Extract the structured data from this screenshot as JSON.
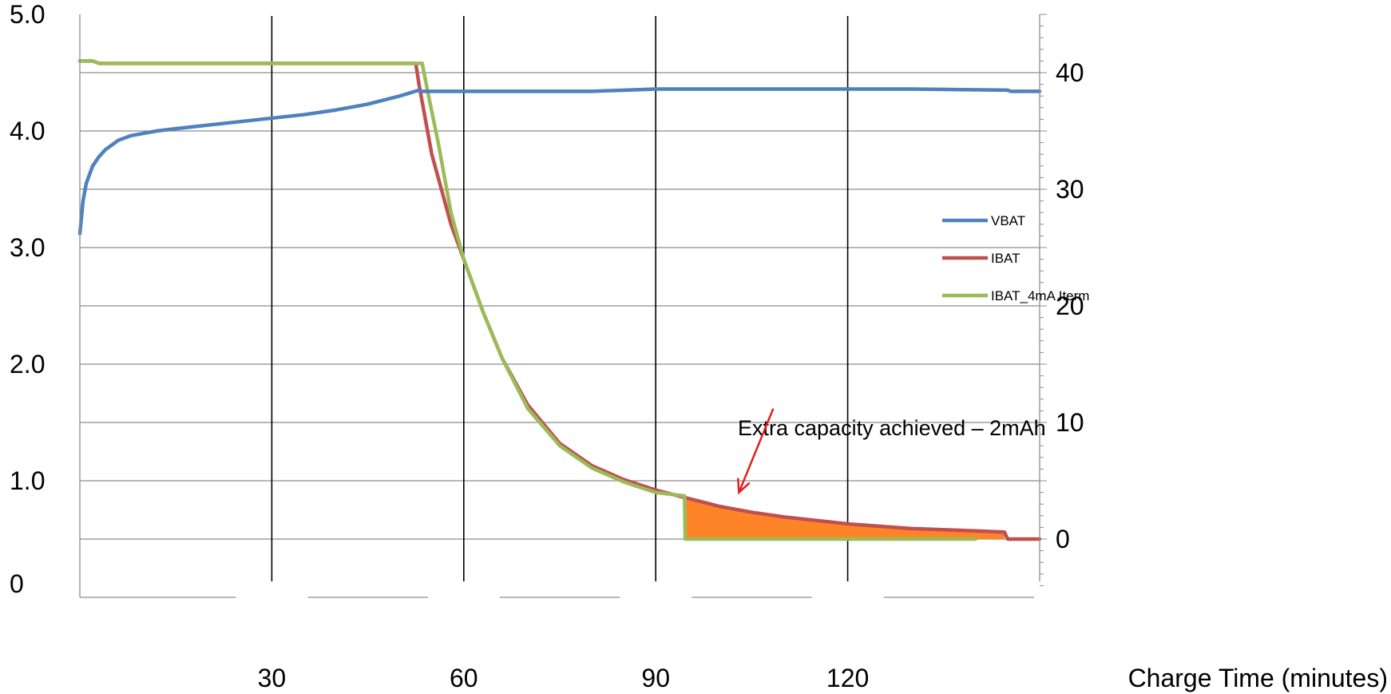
{
  "chart_data": {
    "type": "line",
    "xlabel": "Charge Time (minutes)",
    "xlim": [
      0,
      150
    ],
    "x_ticks": [
      30,
      60,
      90,
      120
    ],
    "x_tick_labels": [
      "30",
      "60",
      "90",
      "120"
    ],
    "left_axis": {
      "ylim": [
        0,
        5.0
      ],
      "tick_values": [
        0,
        1.0,
        2.0,
        3.0,
        4.0,
        5.0
      ],
      "tick_labels": [
        "0",
        "1.0",
        "2.0",
        "3.0",
        "4.0",
        "5.0"
      ]
    },
    "right_axis": {
      "ylim": [
        -5,
        45
      ],
      "tick_values": [
        0,
        10,
        20,
        30,
        40
      ],
      "tick_labels": [
        "0",
        "10",
        "20",
        "30",
        "40"
      ]
    },
    "grid": {
      "horizontal": true,
      "horizontal_left_values": [
        0.5,
        1.0,
        1.5,
        2.0,
        2.5,
        3.0,
        3.5,
        4.0,
        4.5
      ],
      "vertical_values": [
        30,
        60,
        90,
        120
      ]
    },
    "legend": {
      "position": "right",
      "entries": [
        "VBAT",
        "IBAT",
        "IBAT_4mA Iterm"
      ]
    },
    "series": [
      {
        "name": "VBAT",
        "axis": "left",
        "color": "#4f81bd",
        "x": [
          0,
          0.5,
          1,
          2,
          3,
          4,
          5,
          6,
          8,
          10,
          12,
          15,
          20,
          25,
          30,
          35,
          40,
          45,
          50,
          53,
          53.5,
          60,
          70,
          80,
          90,
          100,
          110,
          120,
          130,
          145,
          145.5,
          150
        ],
        "y": [
          3.12,
          3.4,
          3.55,
          3.7,
          3.78,
          3.84,
          3.88,
          3.92,
          3.96,
          3.98,
          4.0,
          4.02,
          4.05,
          4.08,
          4.11,
          4.14,
          4.18,
          4.23,
          4.3,
          4.35,
          4.34,
          4.34,
          4.34,
          4.34,
          4.36,
          4.36,
          4.36,
          4.36,
          4.36,
          4.35,
          4.34,
          4.34
        ]
      },
      {
        "name": "IBAT",
        "axis": "right",
        "color": "#c0504d",
        "x": [
          0,
          2,
          3,
          20,
          40,
          52.5,
          53,
          55,
          58,
          60,
          63,
          66,
          70,
          75,
          80,
          85,
          90,
          95,
          100,
          105,
          110,
          120,
          130,
          140,
          144.5,
          145,
          150
        ],
        "y": [
          41,
          41,
          40.8,
          40.8,
          40.8,
          40.8,
          39,
          33,
          27,
          24,
          19.5,
          15.5,
          11.5,
          8.2,
          6.3,
          5.1,
          4.2,
          3.5,
          2.8,
          2.3,
          1.9,
          1.3,
          0.9,
          0.7,
          0.6,
          0,
          0
        ]
      },
      {
        "name": "IBAT_4mA Iterm",
        "axis": "right",
        "color": "#9bbb59",
        "x": [
          0,
          2,
          3,
          20,
          40,
          53.5,
          54.5,
          56,
          58,
          60,
          63,
          66,
          70,
          75,
          80,
          85,
          90,
          94.5,
          94.6,
          100,
          110,
          120,
          130,
          140
        ],
        "y": [
          41,
          41,
          40.8,
          40.8,
          40.8,
          40.8,
          38,
          34,
          28,
          24,
          19.5,
          15.5,
          11.2,
          8.0,
          6.1,
          4.9,
          4.0,
          3.7,
          0,
          0,
          0,
          0,
          0,
          0
        ]
      }
    ],
    "shaded_region": {
      "label": "Extra capacity achieved",
      "color": "#ff8427",
      "x": [
        94.6,
        95,
        100,
        105,
        110,
        120,
        130,
        140,
        144.5
      ],
      "upper_y": [
        3.45,
        3.4,
        2.8,
        2.3,
        1.9,
        1.3,
        0.9,
        0.7,
        0.6
      ],
      "lower_y": [
        0,
        0,
        0,
        0,
        0,
        0,
        0,
        0,
        0
      ]
    },
    "annotation": {
      "text": "Extra capacity achieved – 2mAh",
      "arrow_color": "#e02020",
      "target_x": 103,
      "target_right_y": 4.0
    }
  }
}
